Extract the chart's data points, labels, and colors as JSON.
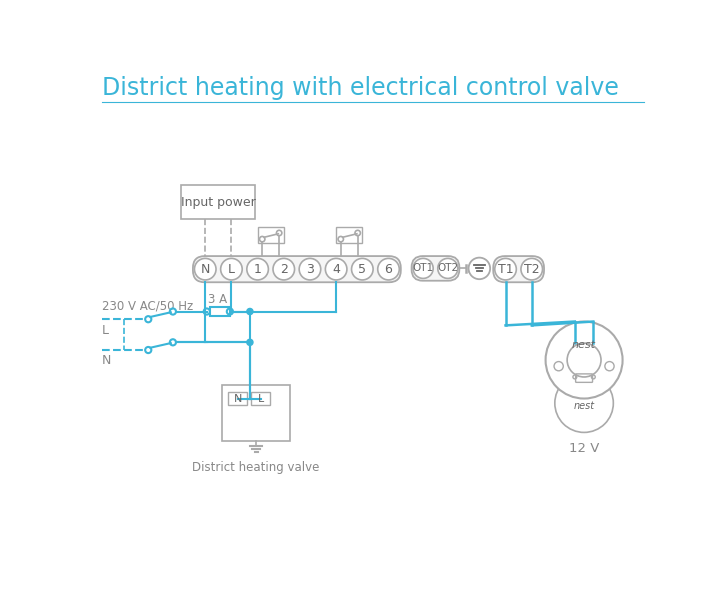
{
  "title": "District heating with electrical control valve",
  "title_color": "#3ab5d8",
  "title_fontsize": 17,
  "bg_color": "#ffffff",
  "line_color": "#3ab5d8",
  "ec": "#aaaaaa",
  "tc": "#888888",
  "dtc": "#666666",
  "terminal_bar_labels": [
    "N",
    "L",
    "1",
    "2",
    "3",
    "4",
    "5",
    "6"
  ],
  "ot_labels": [
    "OT1",
    "OT2"
  ],
  "t_labels": [
    "T1",
    "T2"
  ],
  "label_230v": "230 V AC/50 Hz",
  "label_L": "L",
  "label_N": "N",
  "label_3A": "3 A",
  "label_input_power": "Input power",
  "label_valve": "District heating valve",
  "label_12v": "12 V",
  "label_nest": "nest"
}
